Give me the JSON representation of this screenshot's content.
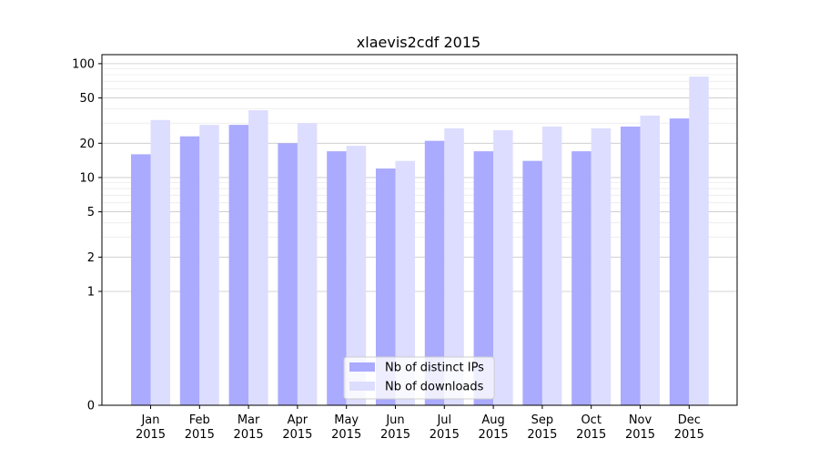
{
  "chart_data": {
    "type": "bar",
    "title": "xlaevis2cdf 2015",
    "xlabel": "",
    "ylabel": "",
    "scale": "symlog",
    "ylim": [
      0,
      120
    ],
    "yticks": [
      0,
      1,
      2,
      5,
      10,
      20,
      50,
      100
    ],
    "ytick_labels": [
      "0",
      "1",
      "2",
      "5",
      "10",
      "20",
      "50",
      "100"
    ],
    "categories": [
      "Jan\n2015",
      "Feb\n2015",
      "Mar\n2015",
      "Apr\n2015",
      "May\n2015",
      "Jun\n2015",
      "Jul\n2015",
      "Aug\n2015",
      "Sep\n2015",
      "Oct\n2015",
      "Nov\n2015",
      "Dec\n2015"
    ],
    "series": [
      {
        "name": "Nb of distinct IPs",
        "color": "#aaaaff",
        "values": [
          16,
          23,
          29,
          20,
          17,
          12,
          21,
          17,
          14,
          17,
          28,
          33
        ]
      },
      {
        "name": "Nb of downloads",
        "color": "#ddddff",
        "values": [
          32,
          29,
          39,
          30,
          19,
          14,
          27,
          26,
          28,
          27,
          35,
          77
        ]
      }
    ],
    "grid": true,
    "legend_position": "lower-center"
  }
}
